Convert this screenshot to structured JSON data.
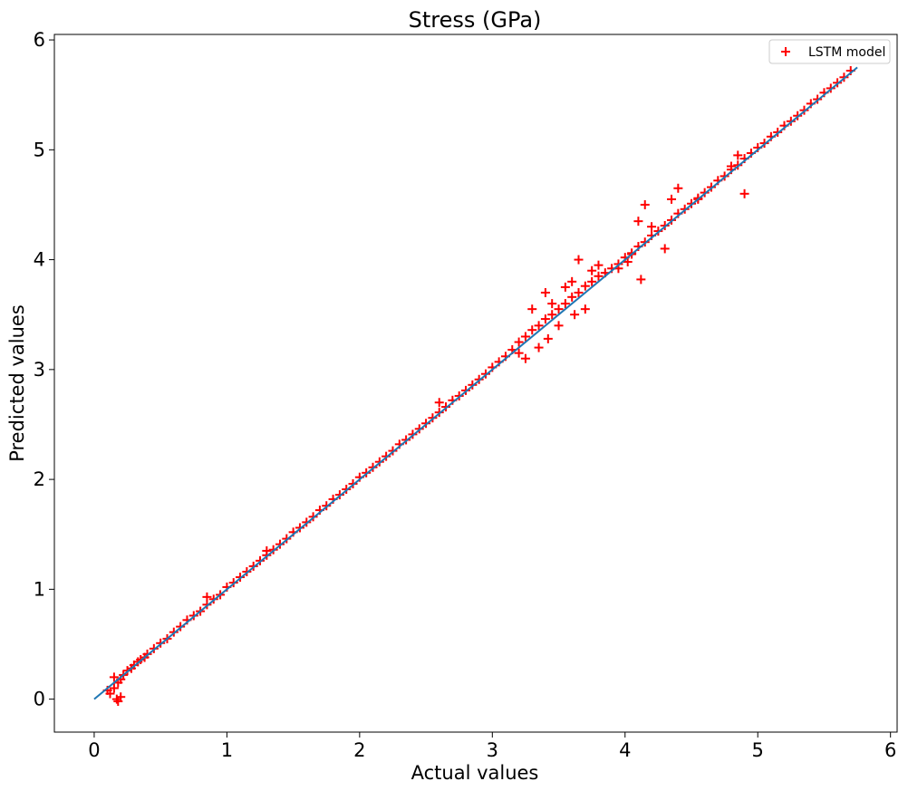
{
  "chart_data": {
    "type": "scatter",
    "title": "Stress (GPa)",
    "xlabel": "Actual values",
    "ylabel": "Predicted values",
    "xlim": [
      -0.3,
      6.05
    ],
    "ylim": [
      -0.3,
      6.05
    ],
    "xticks": [
      "0",
      "1",
      "2",
      "3",
      "4",
      "5",
      "6"
    ],
    "yticks": [
      "0",
      "1",
      "2",
      "3",
      "4",
      "5",
      "6"
    ],
    "grid": false,
    "legend_position": "top-right",
    "series": [
      {
        "name": "LSTM model",
        "kind": "scatter",
        "marker": "+",
        "color": "#ff0000",
        "x": [
          0.1,
          0.12,
          0.15,
          0.17,
          0.18,
          0.2,
          0.22,
          0.25,
          0.28,
          0.3,
          0.33,
          0.35,
          0.38,
          0.4,
          0.45,
          0.5,
          0.55,
          0.6,
          0.65,
          0.7,
          0.75,
          0.8,
          0.85,
          0.9,
          0.95,
          1.0,
          1.05,
          1.1,
          1.15,
          1.2,
          1.25,
          1.3,
          1.35,
          1.4,
          1.45,
          1.5,
          1.55,
          1.6,
          1.65,
          1.7,
          1.75,
          1.8,
          1.85,
          1.9,
          1.95,
          2.0,
          2.05,
          2.1,
          2.15,
          2.2,
          2.25,
          2.3,
          2.35,
          2.4,
          2.45,
          2.5,
          2.55,
          2.6,
          2.65,
          2.7,
          2.75,
          2.8,
          2.85,
          2.9,
          2.95,
          3.0,
          3.05,
          3.1,
          3.15,
          3.2,
          3.25,
          3.3,
          3.35,
          3.4,
          3.45,
          3.5,
          3.55,
          3.6,
          3.65,
          3.7,
          3.75,
          3.8,
          3.85,
          3.9,
          3.95,
          4.0,
          4.05,
          4.1,
          4.15,
          4.2,
          4.25,
          4.3,
          4.35,
          4.4,
          4.45,
          4.5,
          4.55,
          4.6,
          4.65,
          4.7,
          4.75,
          4.8,
          4.85,
          4.9,
          4.95,
          5.0,
          5.05,
          5.1,
          5.15,
          5.2,
          5.25,
          5.3,
          5.35,
          5.4,
          5.45,
          5.5,
          5.55,
          5.6,
          5.65,
          5.7,
          0.15,
          0.18,
          0.2,
          0.85,
          1.3,
          2.6,
          3.2,
          3.3,
          3.4,
          3.45,
          3.55,
          3.6,
          3.65,
          3.75,
          3.8,
          4.05,
          4.1,
          4.15,
          4.2,
          4.3,
          4.35,
          4.4,
          4.55,
          4.8,
          4.85,
          4.9,
          3.5,
          3.7,
          3.25,
          3.35,
          3.95,
          4.12,
          4.02,
          3.62,
          3.42
        ],
        "y": [
          0.08,
          0.05,
          0.1,
          0.0,
          0.15,
          0.18,
          0.22,
          0.26,
          0.28,
          0.31,
          0.34,
          0.36,
          0.38,
          0.41,
          0.46,
          0.51,
          0.55,
          0.61,
          0.66,
          0.72,
          0.76,
          0.8,
          0.86,
          0.91,
          0.95,
          1.02,
          1.06,
          1.11,
          1.16,
          1.21,
          1.26,
          1.31,
          1.36,
          1.41,
          1.46,
          1.52,
          1.56,
          1.61,
          1.66,
          1.72,
          1.76,
          1.82,
          1.86,
          1.91,
          1.96,
          2.02,
          2.06,
          2.11,
          2.16,
          2.21,
          2.26,
          2.32,
          2.36,
          2.41,
          2.46,
          2.51,
          2.56,
          2.61,
          2.66,
          2.72,
          2.76,
          2.81,
          2.86,
          2.91,
          2.96,
          3.02,
          3.07,
          3.12,
          3.18,
          3.25,
          3.3,
          3.36,
          3.4,
          3.46,
          3.5,
          3.55,
          3.6,
          3.66,
          3.7,
          3.76,
          3.8,
          3.85,
          3.88,
          3.92,
          3.96,
          4.02,
          4.06,
          4.12,
          4.16,
          4.22,
          4.26,
          4.31,
          4.36,
          4.42,
          4.46,
          4.51,
          4.56,
          4.61,
          4.66,
          4.72,
          4.76,
          4.82,
          4.86,
          4.92,
          4.97,
          5.02,
          5.06,
          5.12,
          5.16,
          5.22,
          5.26,
          5.31,
          5.36,
          5.42,
          5.46,
          5.52,
          5.56,
          5.61,
          5.66,
          5.72,
          0.2,
          -0.02,
          0.02,
          0.93,
          1.35,
          2.7,
          3.15,
          3.55,
          3.7,
          3.6,
          3.75,
          3.8,
          4.0,
          3.9,
          3.95,
          4.05,
          4.35,
          4.5,
          4.3,
          4.1,
          4.55,
          4.65,
          4.55,
          4.85,
          4.95,
          4.6,
          3.4,
          3.55,
          3.1,
          3.2,
          3.92,
          3.82,
          3.98,
          3.5,
          3.28
        ]
      },
      {
        "kind": "line",
        "color": "#1f77b4",
        "x": [
          0,
          5.75
        ],
        "y": [
          0,
          5.75
        ]
      }
    ]
  }
}
